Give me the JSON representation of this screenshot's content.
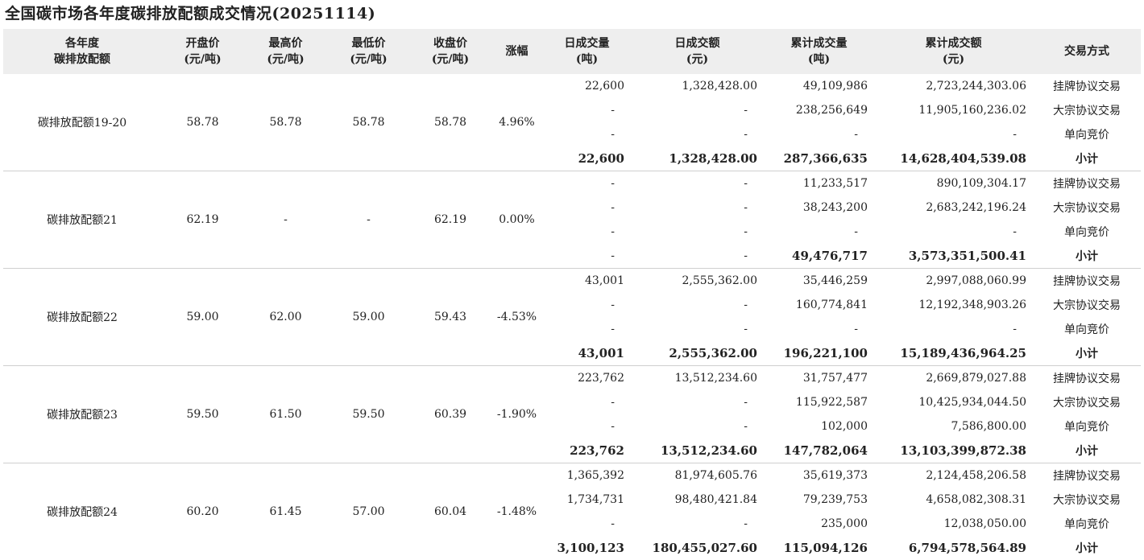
{
  "title": "全国碳市场各年度碳排放配额成交情况(20251114)",
  "headers": [
    [
      "各年度",
      "碳排放配额"
    ],
    [
      "开盘价",
      "(元/吨)"
    ],
    [
      "最高价",
      "(元/吨)"
    ],
    [
      "最低价",
      "(元/吨)"
    ],
    [
      "收盘价",
      "(元/吨)"
    ],
    [
      "涨幅"
    ],
    [
      "日成交量",
      "(吨)"
    ],
    [
      "日成交额",
      "(元)"
    ],
    [
      "累计成交量",
      "(吨)"
    ],
    [
      "累计成交额",
      "(元)"
    ],
    [
      "交易方式"
    ]
  ],
  "groups": [
    {
      "name": "碳排放配额19-20",
      "open": "58.78",
      "high": "58.78",
      "low": "58.78",
      "close": "58.78",
      "change": "4.96%",
      "rows": [
        {
          "vol": "22,600",
          "amt": "1,328,428.00",
          "cvol": "49,109,986",
          "camt": "2,723,244,303.06",
          "method": "挂牌协议交易"
        },
        {
          "vol": "-",
          "amt": "-",
          "cvol": "238,256,649",
          "camt": "11,905,160,236.02",
          "method": "大宗协议交易"
        },
        {
          "vol": "-",
          "amt": "-",
          "cvol": "-",
          "camt": "-",
          "method": "单向竞价"
        },
        {
          "vol": "22,600",
          "amt": "1,328,428.00",
          "cvol": "287,366,635",
          "camt": "14,628,404,539.08",
          "method": "小计"
        }
      ]
    },
    {
      "name": "碳排放配额21",
      "open": "62.19",
      "high": "-",
      "low": "-",
      "close": "62.19",
      "change": "0.00%",
      "rows": [
        {
          "vol": "-",
          "amt": "-",
          "cvol": "11,233,517",
          "camt": "890,109,304.17",
          "method": "挂牌协议交易"
        },
        {
          "vol": "-",
          "amt": "-",
          "cvol": "38,243,200",
          "camt": "2,683,242,196.24",
          "method": "大宗协议交易"
        },
        {
          "vol": "-",
          "amt": "-",
          "cvol": "-",
          "camt": "-",
          "method": "单向竞价"
        },
        {
          "vol": "-",
          "amt": "-",
          "cvol": "49,476,717",
          "camt": "3,573,351,500.41",
          "method": "小计"
        }
      ]
    },
    {
      "name": "碳排放配额22",
      "open": "59.00",
      "high": "62.00",
      "low": "59.00",
      "close": "59.43",
      "change": "-4.53%",
      "rows": [
        {
          "vol": "43,001",
          "amt": "2,555,362.00",
          "cvol": "35,446,259",
          "camt": "2,997,088,060.99",
          "method": "挂牌协议交易"
        },
        {
          "vol": "-",
          "amt": "-",
          "cvol": "160,774,841",
          "camt": "12,192,348,903.26",
          "method": "大宗协议交易"
        },
        {
          "vol": "-",
          "amt": "-",
          "cvol": "-",
          "camt": "-",
          "method": "单向竞价"
        },
        {
          "vol": "43,001",
          "amt": "2,555,362.00",
          "cvol": "196,221,100",
          "camt": "15,189,436,964.25",
          "method": "小计"
        }
      ]
    },
    {
      "name": "碳排放配额23",
      "open": "59.50",
      "high": "61.50",
      "low": "59.50",
      "close": "60.39",
      "change": "-1.90%",
      "rows": [
        {
          "vol": "223,762",
          "amt": "13,512,234.60",
          "cvol": "31,757,477",
          "camt": "2,669,879,027.88",
          "method": "挂牌协议交易"
        },
        {
          "vol": "-",
          "amt": "-",
          "cvol": "115,922,587",
          "camt": "10,425,934,044.50",
          "method": "大宗协议交易"
        },
        {
          "vol": "-",
          "amt": "-",
          "cvol": "102,000",
          "camt": "7,586,800.00",
          "method": "单向竞价"
        },
        {
          "vol": "223,762",
          "amt": "13,512,234.60",
          "cvol": "147,782,064",
          "camt": "13,103,399,872.38",
          "method": "小计"
        }
      ]
    },
    {
      "name": "碳排放配额24",
      "open": "60.20",
      "high": "61.45",
      "low": "57.00",
      "close": "60.04",
      "change": "-1.48%",
      "rows": [
        {
          "vol": "1,365,392",
          "amt": "81,974,605.76",
          "cvol": "35,619,373",
          "camt": "2,124,458,206.58",
          "method": "挂牌协议交易"
        },
        {
          "vol": "1,734,731",
          "amt": "98,480,421.84",
          "cvol": "79,239,753",
          "camt": "4,658,082,308.31",
          "method": "大宗协议交易"
        },
        {
          "vol": "-",
          "amt": "-",
          "cvol": "235,000",
          "camt": "12,038,050.00",
          "method": "单向竞价"
        },
        {
          "vol": "3,100,123",
          "amt": "180,455,027.60",
          "cvol": "115,094,126",
          "camt": "6,794,578,564.89",
          "method": "小计"
        }
      ]
    }
  ]
}
